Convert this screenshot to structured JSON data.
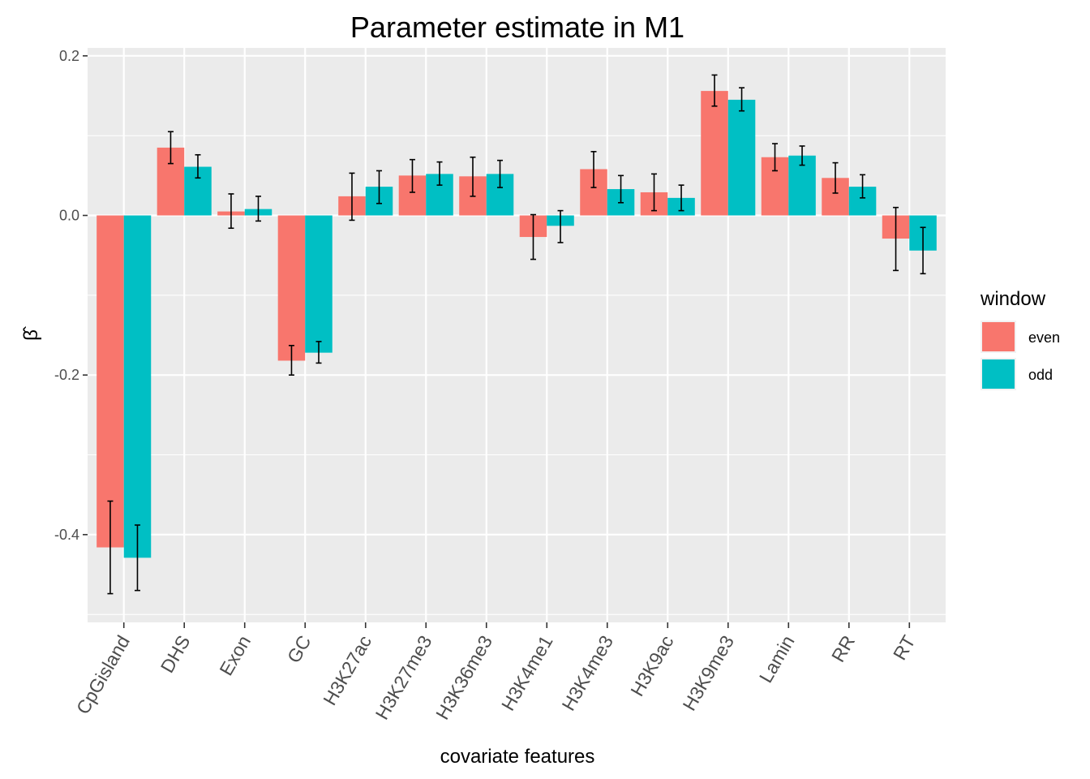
{
  "chart_data": {
    "type": "bar",
    "title": "Parameter estimate in M1",
    "xlabel": "covariate features",
    "ylabel": "β̂",
    "ylim": [
      -0.51,
      0.21
    ],
    "yticks": [
      0.2,
      0.0,
      -0.2,
      -0.4
    ],
    "ytick_labels": [
      "0.2",
      "0.0",
      "-0.2",
      "-0.4"
    ],
    "grid": true,
    "categories": [
      "CpGisland",
      "DHS",
      "Exon",
      "GC",
      "H3K27ac",
      "H3K27me3",
      "H3K36me3",
      "H3K4me1",
      "H3K4me3",
      "H3K9ac",
      "H3K9me3",
      "Lamin",
      "RR",
      "RT"
    ],
    "series": [
      {
        "name": "even",
        "color": "#F8766D",
        "values": [
          -0.416,
          0.085,
          0.005,
          -0.182,
          0.024,
          0.05,
          0.049,
          -0.027,
          0.058,
          0.029,
          0.156,
          0.073,
          0.047,
          -0.029
        ],
        "err_low": [
          -0.474,
          0.065,
          -0.016,
          -0.2,
          -0.006,
          0.029,
          0.024,
          -0.055,
          0.035,
          0.006,
          0.137,
          0.056,
          0.028,
          -0.069
        ],
        "err_high": [
          -0.358,
          0.105,
          0.027,
          -0.163,
          0.053,
          0.07,
          0.073,
          0.001,
          0.08,
          0.052,
          0.176,
          0.09,
          0.066,
          0.01
        ]
      },
      {
        "name": "odd",
        "color": "#00BFC4",
        "values": [
          -0.429,
          0.061,
          0.008,
          -0.172,
          0.036,
          0.052,
          0.052,
          -0.013,
          0.033,
          0.022,
          0.145,
          0.075,
          0.036,
          -0.044
        ],
        "err_low": [
          -0.47,
          0.047,
          -0.007,
          -0.185,
          0.015,
          0.038,
          0.035,
          -0.034,
          0.016,
          0.006,
          0.131,
          0.063,
          0.022,
          -0.073
        ],
        "err_high": [
          -0.388,
          0.076,
          0.024,
          -0.158,
          0.056,
          0.067,
          0.069,
          0.006,
          0.05,
          0.038,
          0.16,
          0.087,
          0.051,
          -0.015
        ]
      }
    ],
    "legend": {
      "title": "window",
      "position": "right"
    }
  }
}
